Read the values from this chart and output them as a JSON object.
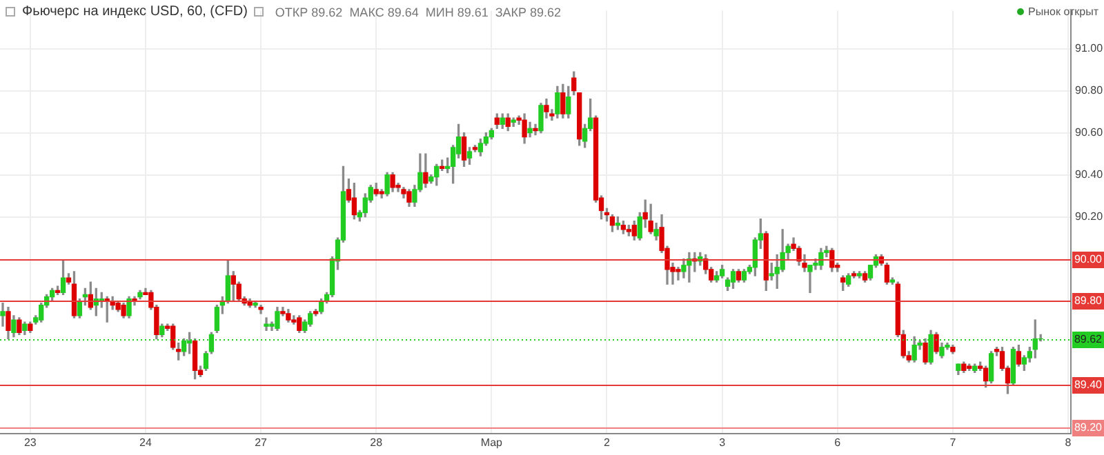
{
  "chart_data": {
    "type": "candlestick",
    "title": "Фьючерс на индекс USD, 60, (CFD)",
    "annotations": [
      "ОТКР 89.62",
      "МАКС 89.64",
      "МИН 89.61",
      "ЗАКР 89.62",
      "Рынок открыт"
    ],
    "categories": [
      null,
      null,
      null,
      null,
      null,
      "23",
      null,
      null,
      null,
      null,
      null,
      null,
      null,
      null,
      null,
      null,
      null,
      null,
      null,
      null,
      null,
      null,
      null,
      null,
      null,
      null,
      "24",
      null,
      null,
      null,
      null,
      null,
      null,
      null,
      null,
      null,
      null,
      null,
      null,
      null,
      null,
      null,
      null,
      null,
      null,
      null,
      null,
      "27",
      null,
      null,
      null,
      null,
      null,
      null,
      null,
      null,
      null,
      null,
      null,
      null,
      null,
      null,
      null,
      null,
      null,
      null,
      null,
      null,
      "28",
      null,
      null,
      null,
      null,
      null,
      null,
      null,
      null,
      null,
      null,
      null,
      null,
      null,
      null,
      null,
      null,
      null,
      null,
      null,
      null,
      "Мар",
      null,
      null,
      null,
      null,
      null,
      null,
      null,
      null,
      null,
      null,
      null,
      null,
      null,
      null,
      null,
      null,
      null,
      null,
      null,
      null,
      "2",
      null,
      null,
      null,
      null,
      null,
      null,
      null,
      null,
      null,
      null,
      null,
      null,
      null,
      null,
      null,
      null,
      null,
      null,
      null,
      null,
      "3",
      null,
      null,
      null,
      null,
      null,
      null,
      null,
      null,
      null,
      null,
      null,
      null,
      null,
      null,
      null,
      null,
      null,
      null,
      null,
      null,
      "6",
      null,
      null,
      null,
      null,
      null,
      null,
      null,
      null,
      null,
      null,
      null,
      null,
      null,
      null,
      null,
      null,
      null,
      null,
      null,
      null,
      "7",
      null,
      null,
      null,
      null,
      null,
      null,
      null,
      null,
      null,
      null,
      null,
      null,
      null,
      null,
      null,
      null,
      null,
      null,
      null,
      null,
      "8"
    ],
    "ohlc": [
      [
        89.73,
        89.79,
        89.68,
        89.75
      ],
      [
        89.75,
        89.77,
        89.62,
        89.66
      ],
      [
        89.65,
        89.73,
        89.63,
        89.71
      ],
      [
        89.71,
        89.72,
        89.64,
        89.65
      ],
      [
        89.66,
        89.7,
        89.64,
        89.69
      ],
      [
        89.69,
        89.7,
        89.65,
        89.66
      ],
      [
        89.7,
        89.73,
        89.69,
        89.72
      ],
      [
        89.71,
        89.79,
        89.7,
        89.78
      ],
      [
        89.78,
        89.83,
        89.77,
        89.82
      ],
      [
        89.82,
        89.86,
        89.8,
        89.85
      ],
      [
        89.85,
        89.87,
        89.83,
        89.84
      ],
      [
        89.84,
        89.99,
        89.83,
        89.91
      ],
      [
        89.91,
        89.93,
        89.88,
        89.89
      ],
      [
        89.88,
        89.94,
        89.72,
        89.73
      ],
      [
        89.73,
        89.81,
        89.72,
        89.8
      ],
      [
        89.82,
        89.86,
        89.78,
        89.83
      ],
      [
        89.83,
        89.89,
        89.76,
        89.77
      ],
      [
        89.78,
        89.86,
        89.73,
        89.81
      ],
      [
        89.8,
        89.84,
        89.77,
        89.81
      ],
      [
        89.81,
        89.82,
        89.7,
        89.8
      ],
      [
        89.8,
        89.82,
        89.76,
        89.78
      ],
      [
        89.79,
        89.8,
        89.75,
        89.76
      ],
      [
        89.78,
        89.79,
        89.72,
        89.73
      ],
      [
        89.73,
        89.82,
        89.72,
        89.81
      ],
      [
        89.81,
        89.82,
        89.78,
        89.8
      ],
      [
        89.82,
        89.85,
        89.81,
        89.84
      ],
      [
        89.84,
        89.86,
        89.83,
        89.83
      ],
      [
        89.84,
        89.85,
        89.76,
        89.77
      ],
      [
        89.77,
        89.78,
        89.62,
        89.64
      ],
      [
        89.64,
        89.69,
        89.63,
        89.68
      ],
      [
        89.68,
        89.69,
        89.66,
        89.67
      ],
      [
        89.68,
        89.69,
        89.57,
        89.58
      ],
      [
        89.57,
        89.6,
        89.52,
        89.56
      ],
      [
        89.56,
        89.62,
        89.54,
        89.61
      ],
      [
        89.6,
        89.65,
        89.55,
        89.61
      ],
      [
        89.61,
        89.62,
        89.43,
        89.47
      ],
      [
        89.47,
        89.49,
        89.44,
        89.45
      ],
      [
        89.48,
        89.56,
        89.47,
        89.55
      ],
      [
        89.56,
        89.65,
        89.55,
        89.64
      ],
      [
        89.66,
        89.78,
        89.65,
        89.77
      ],
      [
        89.78,
        89.82,
        89.74,
        89.8
      ],
      [
        89.8,
        89.99,
        89.79,
        89.92
      ],
      [
        89.92,
        89.94,
        89.8,
        89.88
      ],
      [
        89.88,
        89.89,
        89.8,
        89.81
      ],
      [
        89.81,
        89.82,
        89.78,
        89.79
      ],
      [
        89.8,
        89.81,
        89.77,
        89.78
      ],
      [
        89.78,
        89.8,
        89.77,
        89.79
      ],
      [
        89.77,
        89.78,
        89.74,
        89.76
      ],
      [
        89.68,
        89.72,
        89.66,
        89.69
      ],
      [
        89.68,
        89.7,
        89.66,
        89.69
      ],
      [
        89.67,
        89.77,
        89.66,
        89.75
      ],
      [
        89.75,
        89.77,
        89.73,
        89.74
      ],
      [
        89.74,
        89.76,
        89.7,
        89.71
      ],
      [
        89.71,
        89.73,
        89.69,
        89.7
      ],
      [
        89.72,
        89.73,
        89.65,
        89.66
      ],
      [
        89.66,
        89.71,
        89.65,
        89.7
      ],
      [
        89.69,
        89.75,
        89.68,
        89.74
      ],
      [
        89.75,
        89.76,
        89.73,
        89.74
      ],
      [
        89.75,
        89.81,
        89.74,
        89.8
      ],
      [
        89.8,
        89.84,
        89.79,
        89.83
      ],
      [
        89.83,
        90.01,
        89.82,
        90.0
      ],
      [
        89.99,
        90.1,
        89.95,
        90.09
      ],
      [
        90.09,
        90.44,
        90.08,
        90.32
      ],
      [
        90.33,
        90.38,
        90.27,
        90.28
      ],
      [
        90.29,
        90.36,
        90.19,
        90.21
      ],
      [
        90.2,
        90.23,
        90.18,
        90.22
      ],
      [
        90.22,
        90.31,
        90.2,
        90.29
      ],
      [
        90.28,
        90.35,
        90.27,
        90.34
      ],
      [
        90.33,
        90.36,
        90.3,
        90.31
      ],
      [
        90.32,
        90.33,
        90.29,
        90.31
      ],
      [
        90.31,
        90.41,
        90.3,
        90.4
      ],
      [
        90.4,
        90.41,
        90.32,
        90.34
      ],
      [
        90.35,
        90.36,
        90.32,
        90.34
      ],
      [
        90.33,
        90.34,
        90.29,
        90.31
      ],
      [
        90.32,
        90.33,
        90.25,
        90.27
      ],
      [
        90.27,
        90.35,
        90.25,
        90.33
      ],
      [
        90.33,
        90.5,
        90.32,
        90.41
      ],
      [
        90.41,
        90.5,
        90.34,
        90.36
      ],
      [
        90.37,
        90.4,
        90.36,
        90.39
      ],
      [
        90.39,
        90.45,
        90.35,
        90.44
      ],
      [
        90.44,
        90.47,
        90.42,
        90.43
      ],
      [
        90.43,
        90.48,
        90.41,
        90.44
      ],
      [
        90.44,
        90.54,
        90.36,
        90.53
      ],
      [
        90.5,
        90.64,
        90.48,
        90.58
      ],
      [
        90.58,
        90.6,
        90.44,
        90.47
      ],
      [
        90.48,
        90.53,
        90.45,
        90.51
      ],
      [
        90.53,
        90.54,
        90.51,
        90.52
      ],
      [
        90.51,
        90.57,
        90.49,
        90.55
      ],
      [
        90.55,
        90.6,
        90.54,
        90.58
      ],
      [
        90.58,
        90.62,
        90.57,
        90.61
      ],
      [
        90.67,
        90.69,
        90.62,
        90.64
      ],
      [
        90.64,
        90.69,
        90.62,
        90.67
      ],
      [
        90.67,
        90.69,
        90.61,
        90.63
      ],
      [
        90.65,
        90.67,
        90.63,
        90.66
      ],
      [
        90.67,
        90.68,
        90.64,
        90.66
      ],
      [
        90.66,
        90.69,
        90.55,
        90.58
      ],
      [
        90.6,
        90.65,
        90.58,
        90.62
      ],
      [
        90.62,
        90.64,
        90.59,
        90.61
      ],
      [
        90.61,
        90.74,
        90.6,
        90.73
      ],
      [
        90.73,
        90.76,
        90.67,
        90.7
      ],
      [
        90.69,
        90.71,
        90.66,
        90.68
      ],
      [
        90.69,
        90.82,
        90.67,
        90.79
      ],
      [
        90.79,
        90.83,
        90.67,
        90.69
      ],
      [
        90.69,
        90.82,
        90.67,
        90.77
      ],
      [
        90.86,
        90.89,
        90.78,
        90.8
      ],
      [
        90.79,
        90.79,
        90.54,
        90.57
      ],
      [
        90.56,
        90.64,
        90.53,
        90.62
      ],
      [
        90.62,
        90.76,
        90.61,
        90.67
      ],
      [
        90.67,
        90.68,
        90.27,
        90.28
      ],
      [
        90.29,
        90.3,
        90.19,
        90.23
      ],
      [
        90.22,
        90.24,
        90.18,
        90.21
      ],
      [
        90.2,
        90.21,
        90.13,
        90.16
      ],
      [
        90.16,
        90.2,
        90.14,
        90.17
      ],
      [
        90.16,
        90.18,
        90.12,
        90.14
      ],
      [
        90.14,
        90.16,
        90.11,
        90.13
      ],
      [
        90.16,
        90.18,
        90.09,
        90.11
      ],
      [
        90.1,
        90.22,
        90.09,
        90.2
      ],
      [
        90.22,
        90.28,
        90.15,
        90.19
      ],
      [
        90.18,
        90.26,
        90.12,
        90.13
      ],
      [
        90.11,
        90.17,
        90.09,
        90.14
      ],
      [
        90.15,
        90.21,
        90.03,
        90.04
      ],
      [
        90.05,
        90.06,
        89.88,
        89.95
      ],
      [
        89.96,
        89.98,
        89.88,
        89.94
      ],
      [
        89.95,
        89.96,
        89.9,
        89.94
      ],
      [
        89.94,
        90.0,
        89.91,
        89.97
      ],
      [
        89.97,
        90.03,
        89.89,
        90.0
      ],
      [
        90.0,
        90.03,
        89.94,
        89.99
      ],
      [
        89.99,
        90.03,
        89.97,
        90.01
      ],
      [
        90.0,
        90.02,
        89.93,
        89.95
      ],
      [
        89.95,
        89.96,
        89.89,
        89.9
      ],
      [
        89.9,
        89.94,
        89.89,
        89.92
      ],
      [
        89.92,
        89.97,
        89.91,
        89.95
      ],
      [
        89.87,
        89.91,
        89.85,
        89.9
      ],
      [
        89.89,
        89.95,
        89.86,
        89.94
      ],
      [
        89.94,
        89.95,
        89.89,
        89.9
      ],
      [
        89.9,
        89.95,
        89.89,
        89.94
      ],
      [
        89.94,
        89.97,
        89.93,
        89.96
      ],
      [
        89.96,
        90.1,
        89.92,
        90.09
      ],
      [
        90.09,
        90.19,
        90.05,
        90.12
      ],
      [
        90.12,
        90.13,
        89.85,
        89.9
      ],
      [
        89.92,
        89.98,
        89.9,
        89.93
      ],
      [
        89.93,
        90.02,
        89.86,
        89.96
      ],
      [
        89.95,
        90.14,
        89.94,
        90.03
      ],
      [
        90.03,
        90.07,
        90.0,
        90.06
      ],
      [
        90.07,
        90.1,
        90.04,
        90.05
      ],
      [
        90.05,
        90.06,
        89.97,
        89.99
      ],
      [
        89.98,
        90.02,
        89.94,
        89.96
      ],
      [
        89.94,
        89.97,
        89.84,
        89.97
      ],
      [
        89.97,
        90.0,
        89.95,
        89.98
      ],
      [
        89.97,
        90.05,
        89.95,
        90.03
      ],
      [
        90.03,
        90.06,
        90.01,
        90.04
      ],
      [
        90.04,
        90.05,
        89.94,
        89.96
      ],
      [
        89.97,
        89.98,
        89.94,
        89.96
      ],
      [
        89.91,
        89.92,
        89.85,
        89.89
      ],
      [
        89.88,
        89.93,
        89.87,
        89.92
      ],
      [
        89.93,
        89.94,
        89.91,
        89.92
      ],
      [
        89.92,
        89.94,
        89.91,
        89.93
      ],
      [
        89.93,
        89.94,
        89.89,
        89.9
      ],
      [
        89.91,
        89.97,
        89.9,
        89.97
      ],
      [
        89.97,
        90.02,
        89.96,
        90.01
      ],
      [
        90.01,
        90.02,
        89.97,
        89.98
      ],
      [
        89.97,
        89.98,
        89.88,
        89.89
      ],
      [
        89.89,
        89.91,
        89.88,
        89.9
      ],
      [
        89.88,
        89.89,
        89.63,
        89.64
      ],
      [
        89.64,
        89.66,
        89.53,
        89.54
      ],
      [
        89.54,
        89.56,
        89.51,
        89.52
      ],
      [
        89.52,
        89.63,
        89.51,
        89.59
      ],
      [
        89.59,
        89.61,
        89.57,
        89.6
      ],
      [
        89.6,
        89.62,
        89.5,
        89.51
      ],
      [
        89.51,
        89.66,
        89.5,
        89.64
      ],
      [
        89.64,
        89.65,
        89.55,
        89.56
      ],
      [
        89.54,
        89.6,
        89.53,
        89.58
      ],
      [
        89.58,
        89.6,
        89.57,
        89.59
      ],
      [
        89.58,
        89.59,
        89.55,
        89.56
      ],
      [
        89.47,
        89.5,
        89.45,
        89.5
      ],
      [
        89.5,
        89.51,
        89.46,
        89.47
      ],
      [
        89.49,
        89.5,
        89.47,
        89.48
      ],
      [
        89.47,
        89.5,
        89.46,
        89.49
      ],
      [
        89.49,
        89.51,
        89.47,
        89.48
      ],
      [
        89.48,
        89.49,
        89.39,
        89.42
      ],
      [
        89.42,
        89.56,
        89.41,
        89.55
      ],
      [
        89.57,
        89.58,
        89.54,
        89.56
      ],
      [
        89.56,
        89.58,
        89.47,
        89.48
      ],
      [
        89.48,
        89.49,
        89.36,
        89.41
      ],
      [
        89.41,
        89.58,
        89.4,
        89.57
      ],
      [
        89.56,
        89.59,
        89.49,
        89.5
      ],
      [
        89.5,
        89.54,
        89.47,
        89.53
      ],
      [
        89.53,
        89.58,
        89.51,
        89.56
      ],
      [
        89.57,
        89.71,
        89.53,
        89.62
      ],
      [
        89.62,
        89.64,
        89.61,
        89.62
      ],
      null,
      null,
      null,
      null,
      null
    ],
    "colors": [
      "#22cc22",
      "#dd0000",
      "#22cc22",
      "#dd0000",
      "#22cc22",
      "#dd0000",
      "#22cc22",
      "#22cc22",
      "#22cc22",
      "#22cc22",
      "#dd0000",
      "#22cc22",
      "#dd0000",
      "#dd0000",
      "#22cc22",
      "#22cc22",
      "#dd0000",
      "#22cc22",
      "#22cc22",
      "#dd0000",
      "#dd0000",
      "#dd0000",
      "#dd0000",
      "#22cc22",
      "#dd0000",
      "#22cc22",
      "#dd0000",
      "#dd0000",
      "#dd0000",
      "#22cc22",
      "#dd0000",
      "#dd0000",
      "#dd0000",
      "#22cc22",
      "#22cc22",
      "#dd0000",
      "#dd0000",
      "#22cc22",
      "#22cc22",
      "#22cc22",
      "#22cc22",
      "#22cc22",
      "#dd0000",
      "#dd0000",
      "#dd0000",
      "#dd0000",
      "#22cc22",
      "#dd0000",
      "#22cc22",
      "#22cc22",
      "#22cc22",
      "#dd0000",
      "#dd0000",
      "#dd0000",
      "#dd0000",
      "#22cc22",
      "#22cc22",
      "#dd0000",
      "#22cc22",
      "#22cc22",
      "#22cc22",
      "#22cc22",
      "#22cc22",
      "#dd0000",
      "#dd0000",
      "#22cc22",
      "#22cc22",
      "#22cc22",
      "#dd0000",
      "#dd0000",
      "#22cc22",
      "#dd0000",
      "#dd0000",
      "#dd0000",
      "#dd0000",
      "#22cc22",
      "#22cc22",
      "#dd0000",
      "#22cc22",
      "#22cc22",
      "#dd0000",
      "#22cc22",
      "#22cc22",
      "#22cc22",
      "#dd0000",
      "#22cc22",
      "#dd0000",
      "#22cc22",
      "#22cc22",
      "#22cc22",
      "#dd0000",
      "#22cc22",
      "#dd0000",
      "#22cc22",
      "#dd0000",
      "#dd0000",
      "#22cc22",
      "#dd0000",
      "#22cc22",
      "#dd0000",
      "#dd0000",
      "#22cc22",
      "#dd0000",
      "#22cc22",
      "#dd0000",
      "#dd0000",
      "#22cc22",
      "#22cc22",
      "#dd0000",
      "#dd0000",
      "#dd0000",
      "#dd0000",
      "#22cc22",
      "#dd0000",
      "#dd0000",
      "#dd0000",
      "#22cc22",
      "#dd0000",
      "#dd0000",
      "#22cc22",
      "#dd0000",
      "#dd0000",
      "#dd0000",
      "#dd0000",
      "#22cc22",
      "#22cc22",
      "#dd0000",
      "#22cc22",
      "#dd0000",
      "#dd0000",
      "#22cc22",
      "#22cc22",
      "#22cc22",
      "#22cc22",
      "#dd0000",
      "#22cc22",
      "#22cc22",
      "#22cc22",
      "#22cc22",
      "#dd0000",
      "#22cc22",
      "#22cc22",
      "#22cc22",
      "#22cc22",
      "#dd0000",
      "#dd0000",
      "#dd0000",
      "#22cc22",
      "#22cc22",
      "#22cc22",
      "#22cc22",
      "#dd0000",
      "#dd0000",
      "#dd0000",
      "#22cc22",
      "#dd0000",
      "#22cc22",
      "#dd0000",
      "#22cc22",
      "#22cc22",
      "#dd0000",
      "#dd0000",
      "#22cc22",
      "#dd0000",
      "#dd0000",
      "#dd0000",
      "#22cc22",
      "#22cc22",
      "#dd0000",
      "#22cc22",
      "#dd0000",
      "#22cc22",
      "#22cc22",
      "#dd0000",
      "#22cc22",
      "#dd0000",
      "#dd0000",
      "#22cc22",
      "#dd0000",
      "#dd0000",
      "#22cc22",
      "#dd0000",
      "#dd0000",
      "#dd0000",
      "#22cc22",
      "#dd0000",
      "#22cc22",
      "#22cc22",
      "#22cc22",
      "#22cc22",
      null,
      null,
      null,
      null,
      null
    ],
    "ylim": [
      89.17,
      91.18
    ],
    "yticks": [
      {
        "value": 90.2,
        "label": "90.20"
      },
      {
        "value": 90.4,
        "label": "90.40"
      },
      {
        "value": 90.6,
        "label": "90.60"
      },
      {
        "value": 90.8,
        "label": "90.80"
      },
      {
        "value": 91,
        "label": "91.00"
      }
    ],
    "ref_lines": [
      {
        "axis": "y",
        "value": 90,
        "label": "90.00",
        "color": "#e53935",
        "line_style": "solid"
      },
      {
        "axis": "y",
        "value": 89.8,
        "label": "89.80",
        "color": "#e53935",
        "line_style": "solid"
      },
      {
        "axis": "y",
        "value": 89.62,
        "label": "89.62",
        "color": "#22cc22",
        "line_style": "dotted"
      },
      {
        "axis": "y",
        "value": 89.4,
        "label": "89.40",
        "color": "#e53935",
        "line_style": "solid"
      },
      {
        "axis": "y",
        "value": 89.2,
        "label": "89.20",
        "color": "#f08080",
        "line_style": "solid"
      }
    ],
    "grid": true,
    "legend": false
  }
}
